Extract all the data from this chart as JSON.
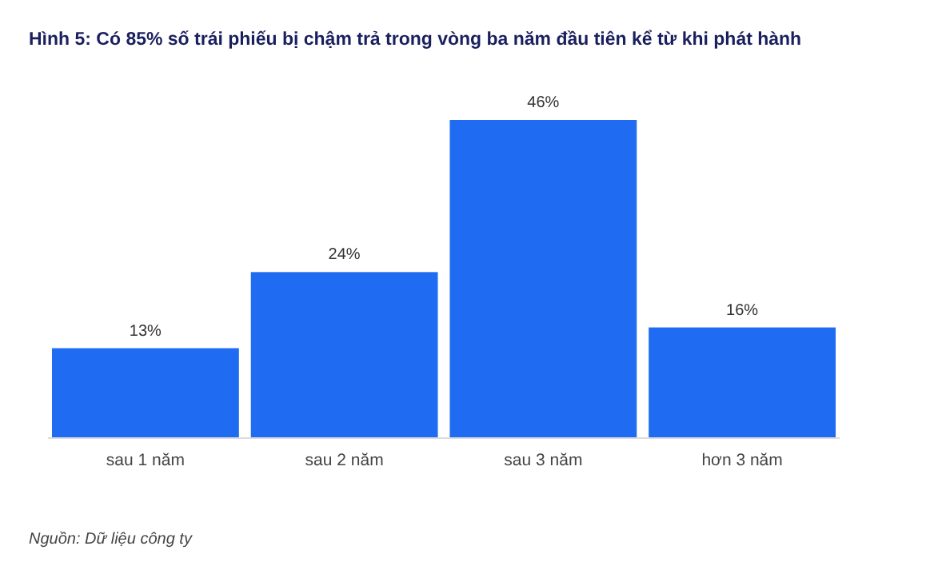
{
  "chart_data": {
    "type": "bar",
    "title": "Hình 5: Có 85% số trái phiếu bị chậm trả trong vòng ba năm đầu tiên kể từ khi phát hành",
    "categories": [
      "sau 1 năm",
      "sau 2 năm",
      "sau 3 năm",
      "hơn 3 năm"
    ],
    "values": [
      13,
      24,
      46,
      16
    ],
    "color": "#1f6cf2",
    "value_labels": [
      "13%",
      "24%",
      "46%",
      "16%"
    ],
    "annotations": [
      "Nguồn: Dữ liệu công ty"
    ]
  }
}
